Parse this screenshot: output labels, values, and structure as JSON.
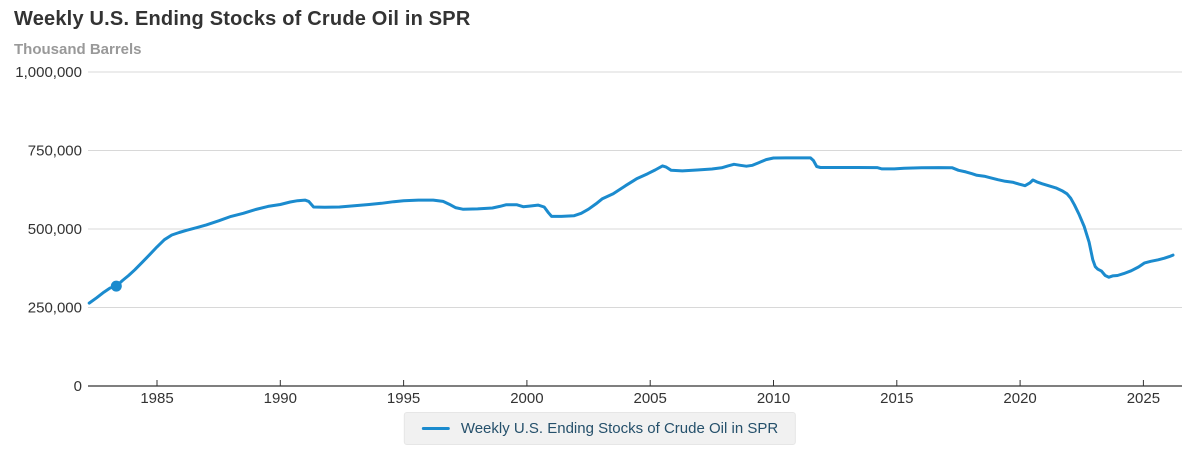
{
  "header": {
    "title": "Weekly U.S. Ending Stocks of Crude Oil in SPR",
    "subtitle": "Thousand Barrels"
  },
  "legend": {
    "label": "Weekly U.S. Ending Stocks of Crude Oil in SPR"
  },
  "colors": {
    "series": "#1b8bce",
    "title_text": "#333333",
    "subtitle_text": "#999999",
    "axis_text": "#333333",
    "gridline": "#d8d8d8",
    "axis_line": "#333333",
    "legend_bg": "#f1f1f1",
    "legend_text": "#25506b"
  },
  "chart_data": {
    "type": "line",
    "title": "Weekly U.S. Ending Stocks of Crude Oil in SPR",
    "ylabel": "Thousand Barrels",
    "xlabel": "",
    "grid": true,
    "legend_position": "bottom",
    "x_range": [
      1982.25,
      2026.35
    ],
    "ylim": [
      0,
      1000000
    ],
    "y_ticks": [
      0,
      250000,
      500000,
      750000,
      1000000
    ],
    "x_ticks": [
      1985,
      1990,
      1995,
      2000,
      2005,
      2010,
      2015,
      2020,
      2025
    ],
    "marker_point": {
      "x": 1983.35,
      "y": 318000
    },
    "series": [
      {
        "name": "Weekly U.S. Ending Stocks of Crude Oil in SPR",
        "color": "#1b8bce",
        "points": [
          [
            1982.25,
            264000
          ],
          [
            1982.55,
            281000
          ],
          [
            1982.85,
            299000
          ],
          [
            1983.1,
            312000
          ],
          [
            1983.35,
            318000
          ],
          [
            1983.6,
            336000
          ],
          [
            1983.85,
            352000
          ],
          [
            1984.1,
            370000
          ],
          [
            1984.4,
            394000
          ],
          [
            1984.7,
            418000
          ],
          [
            1985.0,
            443000
          ],
          [
            1985.3,
            466000
          ],
          [
            1985.6,
            481000
          ],
          [
            1985.9,
            489000
          ],
          [
            1986.2,
            496000
          ],
          [
            1986.6,
            504000
          ],
          [
            1987.0,
            513000
          ],
          [
            1987.5,
            526000
          ],
          [
            1988.0,
            540000
          ],
          [
            1988.5,
            550000
          ],
          [
            1989.0,
            562000
          ],
          [
            1989.5,
            572000
          ],
          [
            1990.0,
            578000
          ],
          [
            1990.4,
            586000
          ],
          [
            1990.7,
            590000
          ],
          [
            1991.0,
            592000
          ],
          [
            1991.15,
            588000
          ],
          [
            1991.35,
            570000
          ],
          [
            1991.8,
            569000
          ],
          [
            1992.4,
            570000
          ],
          [
            1993.0,
            574000
          ],
          [
            1993.6,
            578000
          ],
          [
            1994.1,
            582000
          ],
          [
            1994.6,
            587000
          ],
          [
            1995.0,
            590000
          ],
          [
            1995.6,
            592000
          ],
          [
            1996.2,
            592000
          ],
          [
            1996.6,
            588000
          ],
          [
            1996.85,
            579000
          ],
          [
            1997.1,
            568000
          ],
          [
            1997.4,
            563000
          ],
          [
            1998.0,
            564000
          ],
          [
            1998.6,
            567000
          ],
          [
            1998.9,
            572000
          ],
          [
            1999.15,
            577000
          ],
          [
            1999.6,
            577000
          ],
          [
            1999.85,
            571000
          ],
          [
            2000.1,
            573000
          ],
          [
            2000.45,
            576000
          ],
          [
            2000.7,
            570000
          ],
          [
            2000.87,
            552000
          ],
          [
            2001.0,
            540000
          ],
          [
            2001.4,
            540000
          ],
          [
            2001.9,
            542000
          ],
          [
            2002.2,
            550000
          ],
          [
            2002.5,
            563000
          ],
          [
            2002.8,
            580000
          ],
          [
            2003.05,
            596000
          ],
          [
            2003.5,
            612000
          ],
          [
            2004.0,
            638000
          ],
          [
            2004.45,
            660000
          ],
          [
            2004.9,
            676000
          ],
          [
            2005.2,
            688000
          ],
          [
            2005.5,
            701000
          ],
          [
            2005.65,
            697000
          ],
          [
            2005.85,
            687000
          ],
          [
            2006.3,
            685000
          ],
          [
            2006.9,
            688000
          ],
          [
            2007.5,
            691000
          ],
          [
            2007.9,
            695000
          ],
          [
            2008.15,
            701000
          ],
          [
            2008.4,
            706000
          ],
          [
            2008.65,
            703000
          ],
          [
            2008.9,
            700000
          ],
          [
            2009.15,
            703000
          ],
          [
            2009.4,
            711000
          ],
          [
            2009.7,
            721000
          ],
          [
            2010.0,
            726000
          ],
          [
            2010.5,
            726500
          ],
          [
            2011.0,
            726500
          ],
          [
            2011.5,
            726500
          ],
          [
            2011.62,
            718000
          ],
          [
            2011.75,
            699000
          ],
          [
            2011.9,
            696000
          ],
          [
            2012.6,
            696000
          ],
          [
            2013.4,
            696000
          ],
          [
            2014.2,
            695500
          ],
          [
            2014.4,
            691500
          ],
          [
            2014.9,
            691500
          ],
          [
            2015.3,
            693500
          ],
          [
            2016.0,
            695000
          ],
          [
            2016.7,
            695500
          ],
          [
            2017.25,
            695000
          ],
          [
            2017.5,
            687000
          ],
          [
            2017.8,
            682000
          ],
          [
            2018.05,
            676000
          ],
          [
            2018.25,
            671000
          ],
          [
            2018.55,
            668000
          ],
          [
            2018.8,
            663000
          ],
          [
            2019.1,
            657000
          ],
          [
            2019.4,
            652000
          ],
          [
            2019.7,
            649000
          ],
          [
            2019.95,
            643000
          ],
          [
            2020.2,
            638000
          ],
          [
            2020.4,
            647000
          ],
          [
            2020.52,
            656000
          ],
          [
            2020.68,
            650000
          ],
          [
            2020.9,
            644000
          ],
          [
            2021.15,
            638000
          ],
          [
            2021.45,
            631000
          ],
          [
            2021.7,
            622000
          ],
          [
            2021.9,
            612000
          ],
          [
            2022.05,
            598000
          ],
          [
            2022.2,
            577000
          ],
          [
            2022.4,
            545000
          ],
          [
            2022.6,
            508000
          ],
          [
            2022.8,
            458000
          ],
          [
            2022.95,
            402000
          ],
          [
            2023.05,
            380000
          ],
          [
            2023.15,
            372000
          ],
          [
            2023.3,
            366000
          ],
          [
            2023.45,
            352000
          ],
          [
            2023.6,
            346500
          ],
          [
            2023.75,
            350500
          ],
          [
            2023.95,
            352000
          ],
          [
            2024.2,
            358000
          ],
          [
            2024.5,
            367000
          ],
          [
            2024.8,
            379000
          ],
          [
            2025.05,
            392000
          ],
          [
            2025.3,
            397000
          ],
          [
            2025.6,
            402000
          ],
          [
            2025.85,
            407000
          ],
          [
            2026.05,
            412000
          ],
          [
            2026.2,
            417000
          ]
        ]
      }
    ]
  }
}
